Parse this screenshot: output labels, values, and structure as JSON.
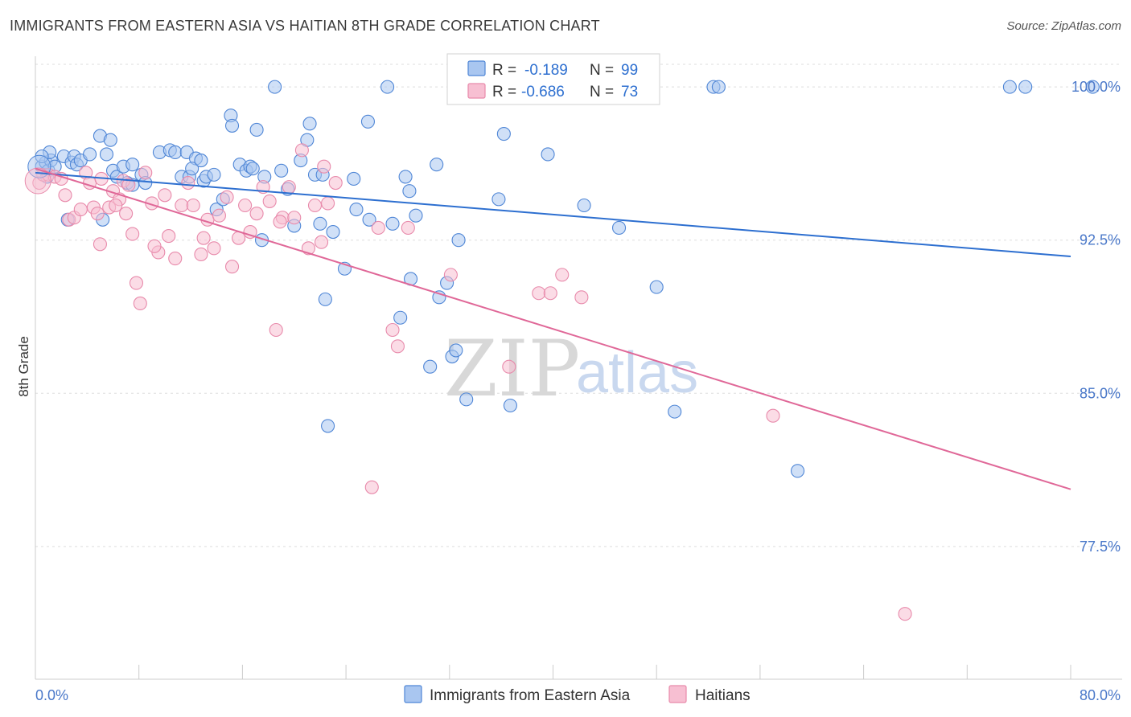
{
  "header": {
    "title": "IMMIGRANTS FROM EASTERN ASIA VS HAITIAN 8TH GRADE CORRELATION CHART",
    "source": "Source: ZipAtlas.com"
  },
  "watermark": {
    "zip": "ZIP",
    "atlas": "atlas"
  },
  "legend_box": {
    "rows": [
      {
        "r_label": "R =",
        "r_value": "-0.189",
        "n_label": "N =",
        "n_value": "99"
      },
      {
        "r_label": "R =",
        "r_value": "-0.686",
        "n_label": "N =",
        "n_value": "73"
      }
    ]
  },
  "colors": {
    "blue_fill": "#a9c6f0",
    "blue_stroke": "#4f86d6",
    "blue_line": "#2d6fd0",
    "pink_fill": "#f7bfd2",
    "pink_stroke": "#e88aab",
    "pink_line": "#e06898",
    "grid": "#dddddd",
    "tick_text": "#4a78c9"
  },
  "chart_data": {
    "type": "scatter",
    "title": "IMMIGRANTS FROM EASTERN ASIA VS HAITIAN 8TH GRADE CORRELATION CHART",
    "xlabel": "",
    "ylabel": "8th Grade",
    "xlim": [
      0,
      80
    ],
    "ylim": [
      71.0,
      101.5
    ],
    "x_tick_labels": [
      "0.0%",
      "80.0%"
    ],
    "y_ticks": [
      77.5,
      85.0,
      92.5,
      100.0
    ],
    "y_tick_labels": [
      "77.5%",
      "85.0%",
      "92.5%",
      "100.0%"
    ],
    "grid": true,
    "legend": "top-center",
    "series": [
      {
        "name": "Immigrants from Eastern Asia",
        "R": -0.189,
        "N": 99,
        "trend": [
          [
            0,
            95.8
          ],
          [
            80,
            91.7
          ]
        ],
        "points": [
          [
            0.5,
            96.1
          ],
          [
            0.8,
            96.3
          ],
          [
            1.0,
            95.9
          ],
          [
            1.2,
            96.4
          ],
          [
            1.5,
            96.1
          ],
          [
            2.2,
            96.6
          ],
          [
            2.8,
            96.3
          ],
          [
            3.0,
            96.6
          ],
          [
            3.2,
            96.2
          ],
          [
            3.5,
            96.4
          ],
          [
            4.2,
            96.7
          ],
          [
            2.5,
            93.5
          ],
          [
            5.0,
            97.6
          ],
          [
            5.8,
            97.4
          ],
          [
            5.5,
            96.7
          ],
          [
            6.0,
            95.9
          ],
          [
            6.3,
            95.6
          ],
          [
            6.8,
            96.1
          ],
          [
            7.1,
            95.3
          ],
          [
            7.5,
            96.2
          ],
          [
            8.2,
            95.7
          ],
          [
            8.5,
            95.3
          ],
          [
            9.6,
            96.8
          ],
          [
            10.4,
            96.9
          ],
          [
            10.8,
            96.8
          ],
          [
            11.7,
            96.8
          ],
          [
            12.4,
            96.5
          ],
          [
            13.0,
            95.4
          ],
          [
            11.3,
            95.6
          ],
          [
            11.9,
            95.6
          ],
          [
            13.2,
            95.6
          ],
          [
            13.8,
            95.7
          ],
          [
            14.0,
            94.0
          ],
          [
            14.5,
            94.5
          ],
          [
            15.1,
            98.6
          ],
          [
            15.2,
            98.1
          ],
          [
            15.8,
            96.2
          ],
          [
            16.3,
            95.9
          ],
          [
            16.6,
            96.1
          ],
          [
            17.1,
            97.9
          ],
          [
            17.7,
            95.6
          ],
          [
            18.5,
            100.0
          ],
          [
            19.0,
            95.9
          ],
          [
            19.5,
            95.0
          ],
          [
            20.0,
            93.2
          ],
          [
            20.5,
            96.4
          ],
          [
            21.2,
            98.2
          ],
          [
            21.0,
            97.4
          ],
          [
            21.6,
            95.7
          ],
          [
            22.2,
            95.7
          ],
          [
            22.0,
            93.3
          ],
          [
            23.0,
            92.9
          ],
          [
            24.6,
            95.5
          ],
          [
            24.8,
            94.0
          ],
          [
            25.7,
            98.3
          ],
          [
            25.8,
            93.5
          ],
          [
            27.6,
            93.3
          ],
          [
            27.2,
            100.0
          ],
          [
            28.6,
            95.6
          ],
          [
            28.2,
            88.7
          ],
          [
            28.9,
            94.9
          ],
          [
            29.0,
            90.6
          ],
          [
            29.4,
            93.7
          ],
          [
            30.5,
            86.3
          ],
          [
            31.0,
            96.2
          ],
          [
            31.2,
            89.7
          ],
          [
            31.8,
            90.4
          ],
          [
            32.2,
            86.8
          ],
          [
            32.5,
            87.1
          ],
          [
            32.7,
            92.5
          ],
          [
            33.3,
            84.7
          ],
          [
            35.8,
            94.5
          ],
          [
            36.2,
            97.7
          ],
          [
            36.7,
            84.4
          ],
          [
            37.0,
            100.0
          ],
          [
            40.5,
            100.0
          ],
          [
            39.6,
            96.7
          ],
          [
            42.4,
            94.2
          ],
          [
            45.1,
            93.1
          ],
          [
            48.0,
            90.2
          ],
          [
            49.4,
            84.1
          ],
          [
            52.4,
            100.0
          ],
          [
            52.8,
            100.0
          ],
          [
            58.9,
            81.2
          ],
          [
            75.3,
            100.0
          ],
          [
            81.7,
            100.0
          ],
          [
            76.5,
            100.0
          ],
          [
            7.5,
            95.2
          ],
          [
            1.1,
            96.8
          ],
          [
            0.5,
            96.6
          ],
          [
            0.9,
            95.6
          ],
          [
            5.2,
            93.5
          ],
          [
            12.1,
            96.0
          ],
          [
            16.8,
            96.0
          ],
          [
            22.6,
            83.4
          ],
          [
            12.8,
            96.4
          ],
          [
            17.5,
            92.5
          ],
          [
            22.4,
            89.6
          ],
          [
            23.9,
            91.1
          ]
        ]
      },
      {
        "name": "Haitians",
        "R": -0.686,
        "N": 73,
        "trend": [
          [
            0,
            96.0
          ],
          [
            80,
            80.3
          ]
        ],
        "points": [
          [
            0.3,
            95.3
          ],
          [
            0.6,
            95.7
          ],
          [
            1.0,
            95.7
          ],
          [
            1.5,
            95.6
          ],
          [
            2.0,
            95.5
          ],
          [
            2.3,
            94.7
          ],
          [
            2.6,
            93.5
          ],
          [
            3.0,
            93.6
          ],
          [
            3.5,
            94.0
          ],
          [
            3.9,
            95.8
          ],
          [
            4.2,
            95.3
          ],
          [
            4.5,
            94.1
          ],
          [
            5.0,
            92.3
          ],
          [
            5.1,
            95.5
          ],
          [
            5.7,
            94.1
          ],
          [
            6.0,
            94.9
          ],
          [
            6.5,
            94.5
          ],
          [
            6.8,
            95.4
          ],
          [
            7.0,
            93.8
          ],
          [
            7.2,
            95.2
          ],
          [
            7.5,
            92.8
          ],
          [
            7.8,
            90.4
          ],
          [
            8.1,
            89.4
          ],
          [
            8.5,
            95.8
          ],
          [
            9.0,
            94.3
          ],
          [
            9.5,
            91.9
          ],
          [
            10.0,
            94.7
          ],
          [
            10.3,
            92.7
          ],
          [
            10.8,
            91.6
          ],
          [
            11.3,
            94.2
          ],
          [
            11.8,
            95.3
          ],
          [
            12.2,
            94.2
          ],
          [
            12.8,
            91.8
          ],
          [
            13.3,
            93.5
          ],
          [
            13.8,
            92.1
          ],
          [
            14.2,
            93.7
          ],
          [
            14.8,
            94.6
          ],
          [
            15.2,
            91.2
          ],
          [
            15.7,
            92.6
          ],
          [
            16.2,
            94.2
          ],
          [
            16.6,
            92.9
          ],
          [
            17.1,
            93.8
          ],
          [
            17.6,
            95.1
          ],
          [
            18.1,
            94.4
          ],
          [
            18.6,
            88.1
          ],
          [
            19.1,
            93.6
          ],
          [
            19.6,
            95.1
          ],
          [
            20.0,
            93.6
          ],
          [
            20.6,
            96.9
          ],
          [
            21.1,
            92.1
          ],
          [
            21.6,
            94.2
          ],
          [
            22.1,
            92.4
          ],
          [
            22.6,
            94.3
          ],
          [
            23.2,
            95.3
          ],
          [
            26.0,
            80.4
          ],
          [
            26.5,
            93.1
          ],
          [
            27.6,
            88.1
          ],
          [
            28.0,
            87.3
          ],
          [
            28.8,
            93.1
          ],
          [
            32.1,
            90.8
          ],
          [
            36.6,
            86.3
          ],
          [
            38.9,
            89.9
          ],
          [
            39.8,
            89.9
          ],
          [
            40.7,
            90.8
          ],
          [
            42.2,
            89.7
          ],
          [
            57.0,
            83.9
          ],
          [
            67.2,
            74.2
          ],
          [
            6.2,
            94.2
          ],
          [
            9.2,
            92.2
          ],
          [
            4.8,
            93.8
          ],
          [
            13.0,
            92.6
          ],
          [
            18.9,
            93.4
          ],
          [
            22.3,
            96.1
          ]
        ]
      }
    ]
  },
  "bottom_legend": {
    "items": [
      {
        "label": "Immigrants from Eastern Asia"
      },
      {
        "label": "Haitians"
      }
    ]
  }
}
